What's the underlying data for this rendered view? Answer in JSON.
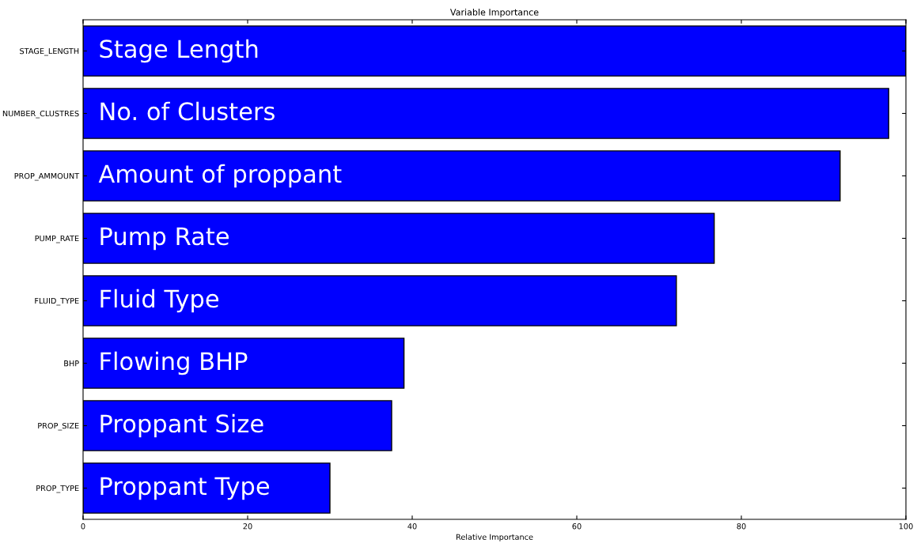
{
  "chart_data": {
    "type": "bar",
    "orientation": "horizontal",
    "title": "Variable Importance",
    "xlabel": "Relative Importance",
    "categories": [
      "STAGE_LENGTH",
      "NUMBER_CLUSTRES",
      "PROP_AMMOUNT",
      "PUMP_RATE",
      "FLUID_TYPE",
      "BHP",
      "PROP_SIZE",
      "PROP_TYPE"
    ],
    "values": [
      100,
      97.9,
      92,
      76.7,
      72.1,
      39,
      37.5,
      30
    ],
    "color": "#0000ff",
    "xlim": [
      0,
      100
    ],
    "xticks": [
      0,
      20,
      40,
      60,
      80,
      100
    ],
    "grid": false,
    "annotations": [
      {
        "text": "Stage Length",
        "y": "STAGE_LENGTH"
      },
      {
        "text": "No. of Clusters",
        "y": "NUMBER_CLUSTRES"
      },
      {
        "text": "Amount of proppant",
        "y": "PROP_AMMOUNT"
      },
      {
        "text": "Pump Rate",
        "y": "PUMP_RATE"
      },
      {
        "text": "Fluid Type",
        "y": "FLUID_TYPE"
      },
      {
        "text": "Flowing BHP",
        "y": "BHP"
      },
      {
        "text": "Proppant Size",
        "y": "PROP_SIZE"
      },
      {
        "text": "Proppant Type",
        "y": "PROP_TYPE"
      }
    ]
  }
}
